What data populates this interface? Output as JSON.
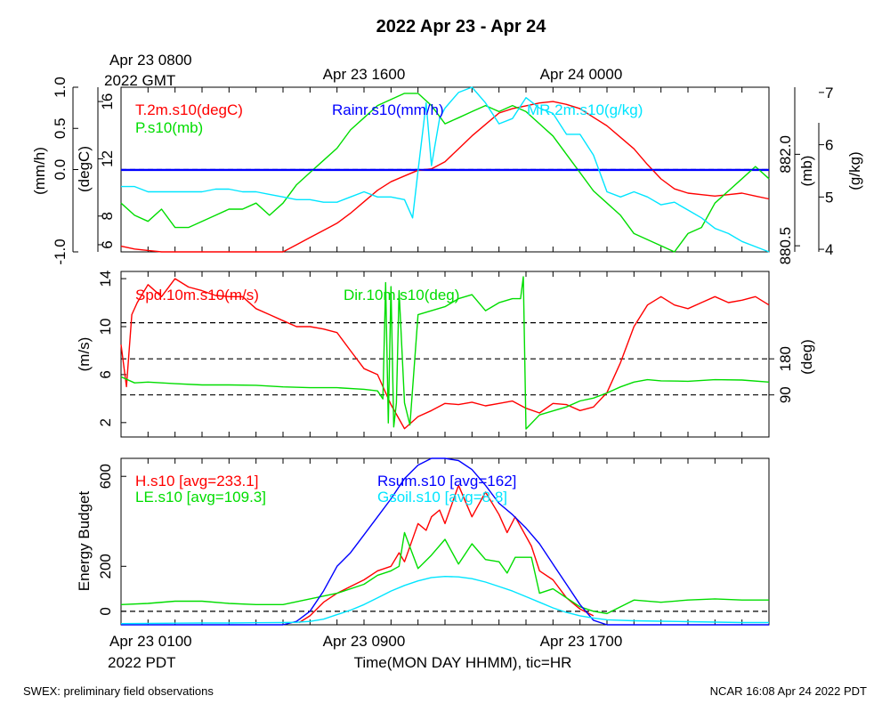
{
  "title": "2022 Apr 23 - Apr 24",
  "top_time_labels": [
    {
      "line1": "Apr 23 0800",
      "line2": "2022 GMT"
    },
    {
      "line1": "Apr 23 1600",
      "line2": ""
    },
    {
      "line1": "Apr 24 0000",
      "line2": ""
    }
  ],
  "bottom_time_labels": [
    {
      "line1": "Apr 23 0100",
      "line2": "2022 PDT"
    },
    {
      "line1": "Apr 23 0900",
      "line2": ""
    },
    {
      "line1": "Apr 23 1700",
      "line2": ""
    }
  ],
  "xlabel": "Time(MON DAY HHMM), tic=HR",
  "footer_left": "SWEX: preliminary field observations",
  "footer_right": "NCAR 16:08 Apr 24 2022 PDT",
  "colors": {
    "red": "#ff0000",
    "green": "#00dd00",
    "blue": "#0000ff",
    "cyan": "#00e5ff",
    "black": "#000000"
  },
  "chart_data": [
    {
      "type": "line",
      "name": "panel-1",
      "x_range_hours_pdt": [
        0,
        24
      ],
      "axes": {
        "rain": {
          "label": "(mm/h)",
          "range": [
            -1.0,
            1.0
          ],
          "ticks": [
            "-1.0",
            "0.0",
            "0.5",
            "1.0"
          ],
          "tick_values": [
            -1.0,
            0.0,
            0.5,
            1.0
          ]
        },
        "temp": {
          "label": "(degC)",
          "range": [
            5.5,
            17.0
          ],
          "ticks": [
            "6",
            "8",
            "12",
            "16"
          ],
          "tick_values": [
            6,
            8,
            12,
            16
          ]
        },
        "pres": {
          "label": "(mb)",
          "range": [
            880.4,
            883.1
          ],
          "ticks": [
            "880.5",
            "882.0"
          ],
          "tick_values": [
            880.5,
            882.0
          ]
        },
        "mr": {
          "label": "(g/kg)",
          "range": [
            3.95,
            7.1
          ],
          "ticks": [
            "4",
            "5",
            "6",
            "7"
          ],
          "tick_values": [
            4,
            5,
            6,
            7
          ]
        }
      },
      "reference_lines": [
        {
          "axis": "rain",
          "value": 0.0,
          "style": "dashed"
        },
        {
          "axis": "rain",
          "value": 0.0,
          "style": "solid-blue"
        }
      ],
      "series": [
        {
          "name": "T.2m.s10(degC)",
          "axis": "temp",
          "color": "red",
          "x": [
            0,
            0.5,
            1,
            1.5,
            2,
            2.5,
            3,
            3.5,
            4,
            4.5,
            5,
            5.5,
            6,
            6.5,
            7,
            7.5,
            8,
            8.5,
            9,
            9.5,
            10,
            10.5,
            11,
            11.5,
            12,
            12.5,
            13,
            13.5,
            14,
            14.5,
            15,
            15.5,
            16,
            16.5,
            17,
            17.5,
            18,
            18.5,
            19,
            19.5,
            20,
            20.5,
            21,
            21.5,
            22,
            22.5,
            23,
            23.5,
            24
          ],
          "y": [
            5.9,
            5.7,
            5.6,
            5.5,
            5.5,
            5.5,
            5.5,
            5.4,
            5.4,
            5.4,
            5.5,
            5.4,
            5.5,
            6.0,
            6.5,
            7.0,
            7.5,
            8.2,
            9.0,
            9.8,
            10.4,
            10.8,
            11.2,
            11.3,
            11.8,
            12.7,
            13.6,
            14.4,
            15.2,
            15.5,
            15.7,
            15.9,
            16.0,
            15.8,
            15.5,
            14.9,
            14.3,
            13.5,
            12.7,
            11.6,
            10.6,
            9.9,
            9.6,
            9.5,
            9.4,
            9.5,
            9.6,
            9.4,
            9.2
          ]
        },
        {
          "name": "P.s10(mb)",
          "axis": "pres",
          "color": "green",
          "x": [
            0,
            0.5,
            1,
            1.5,
            2,
            2.5,
            3,
            3.5,
            4,
            4.5,
            5,
            5.5,
            6,
            6.5,
            7,
            7.5,
            8,
            8.5,
            9,
            9.5,
            10,
            10.5,
            11,
            11.5,
            12,
            12.5,
            13,
            13.5,
            14,
            14.5,
            15,
            15.5,
            16,
            16.5,
            17,
            17.5,
            18,
            18.5,
            19,
            19.5,
            20,
            20.5,
            21,
            21.5,
            22,
            22.5,
            23,
            23.5,
            24
          ],
          "y": [
            881.2,
            881.0,
            880.9,
            881.1,
            880.8,
            880.8,
            880.9,
            881.0,
            881.1,
            881.1,
            881.2,
            881.0,
            881.2,
            881.5,
            881.7,
            881.9,
            882.1,
            882.4,
            882.6,
            882.8,
            882.9,
            883.0,
            883.0,
            882.8,
            882.5,
            882.6,
            882.7,
            882.8,
            882.7,
            882.8,
            882.7,
            882.5,
            882.3,
            882.0,
            881.7,
            881.4,
            881.2,
            881.0,
            880.7,
            880.6,
            880.5,
            880.4,
            880.7,
            880.8,
            881.2,
            881.4,
            881.6,
            881.8,
            881.6
          ]
        },
        {
          "name": "Rainr.s10(mm/h)",
          "axis": "rain",
          "color": "blue",
          "x": [
            0,
            24
          ],
          "y": [
            0.0,
            0.0
          ]
        },
        {
          "name": "MR.2m.s10(g/kg)",
          "axis": "mr",
          "color": "cyan",
          "x": [
            0,
            0.5,
            1,
            1.5,
            2,
            2.5,
            3,
            3.5,
            4,
            4.5,
            5,
            5.5,
            6,
            6.5,
            7,
            7.5,
            8,
            8.5,
            9,
            9.5,
            10,
            10.5,
            10.8,
            11,
            11.3,
            11.5,
            11.8,
            12,
            12.5,
            13,
            13.5,
            14,
            14.5,
            15,
            15.5,
            16,
            16.5,
            17,
            17.5,
            18,
            18.5,
            19,
            19.5,
            20,
            20.5,
            21,
            21.5,
            22,
            22.5,
            23,
            23.5,
            24
          ],
          "y": [
            5.2,
            5.2,
            5.1,
            5.1,
            5.1,
            5.1,
            5.1,
            5.15,
            5.15,
            5.1,
            5.1,
            5.05,
            5.0,
            4.95,
            4.95,
            4.9,
            4.9,
            5.0,
            5.1,
            5.0,
            5.0,
            4.95,
            4.6,
            5.5,
            6.8,
            5.6,
            6.5,
            6.7,
            7.0,
            7.1,
            6.8,
            6.4,
            6.5,
            6.9,
            6.7,
            6.6,
            6.2,
            6.2,
            5.8,
            5.1,
            5.0,
            5.1,
            5.0,
            4.85,
            4.9,
            4.75,
            4.6,
            4.4,
            4.3,
            4.15,
            4.05,
            3.95
          ]
        }
      ]
    },
    {
      "type": "line",
      "name": "panel-2",
      "x_range_hours_pdt": [
        0,
        24
      ],
      "axes": {
        "spd": {
          "label": "(m/s)",
          "range": [
            0.8,
            14.6
          ],
          "ticks": [
            "2",
            "6",
            "10",
            "14"
          ],
          "tick_values": [
            2,
            6,
            10,
            14
          ]
        },
        "dir": {
          "label": "(deg)",
          "range": [
            -15,
            398
          ],
          "ticks": [
            "90",
            "180"
          ],
          "tick_values": [
            90,
            180
          ]
        }
      },
      "reference_lines": [
        {
          "axis": "dir",
          "value": 90
        },
        {
          "axis": "dir",
          "value": 180
        },
        {
          "axis": "dir",
          "value": 270
        }
      ],
      "series": [
        {
          "name": "Spd.10m.s10(m/s)",
          "axis": "spd",
          "color": "red",
          "x": [
            0,
            0.2,
            0.4,
            0.6,
            1,
            1.5,
            2,
            2.5,
            3,
            3.5,
            4,
            4.5,
            5,
            5.5,
            6,
            6.5,
            7,
            7.5,
            8,
            8.5,
            9,
            9.5,
            10,
            10.5,
            11,
            11.5,
            12,
            12.5,
            13,
            13.5,
            14,
            14.5,
            15,
            15.5,
            16,
            16.5,
            17,
            17.5,
            18,
            18.5,
            19,
            19.5,
            20,
            20.5,
            21,
            21.5,
            22,
            22.5,
            23,
            23.5,
            24
          ],
          "y": [
            8.5,
            5.0,
            11.0,
            12.0,
            13.5,
            12.5,
            14.0,
            13.3,
            13.0,
            12.6,
            12.5,
            12.5,
            11.5,
            11.0,
            10.5,
            10.0,
            10.0,
            9.8,
            9.5,
            8.0,
            6.5,
            6.0,
            3.5,
            1.5,
            2.5,
            3.0,
            3.6,
            3.5,
            3.7,
            3.4,
            3.6,
            3.8,
            3.2,
            2.8,
            3.6,
            3.5,
            3.0,
            3.3,
            4.5,
            7.0,
            10.0,
            11.8,
            12.5,
            11.8,
            11.5,
            12.0,
            12.5,
            12.0,
            12.2,
            12.5,
            11.8
          ]
        },
        {
          "name": "Dir.10m.s10(deg)",
          "axis": "dir",
          "color": "green",
          "x": [
            0,
            0.5,
            1,
            2,
            3,
            4,
            5,
            6,
            7,
            8,
            9,
            9.5,
            9.7,
            9.8,
            9.9,
            10,
            10.1,
            10.2,
            10.3,
            10.5,
            10.7,
            11,
            11.5,
            12,
            12.5,
            13,
            13.5,
            14,
            14.5,
            14.8,
            14.9,
            15.0,
            15.5,
            16,
            16.5,
            17,
            17.5,
            18,
            18.5,
            19,
            19.5,
            20,
            21,
            22,
            23,
            24
          ],
          "y": [
            135,
            120,
            122,
            118,
            115,
            115,
            114,
            110,
            108,
            108,
            104,
            100,
            80,
            370,
            20,
            360,
            10,
            70,
            350,
            70,
            15,
            290,
            300,
            310,
            330,
            340,
            300,
            320,
            330,
            330,
            385,
            5,
            40,
            50,
            60,
            75,
            82,
            95,
            110,
            122,
            128,
            125,
            124,
            128,
            127,
            122
          ]
        }
      ]
    },
    {
      "type": "line",
      "name": "panel-3",
      "x_range_hours_pdt": [
        0,
        24
      ],
      "axes": {
        "energy": {
          "label": "Energy Budget",
          "range": [
            -60,
            680
          ],
          "ticks": [
            "0",
            "200",
            "600"
          ],
          "tick_values": [
            0,
            200,
            600
          ]
        }
      },
      "reference_lines": [
        {
          "axis": "energy",
          "value": 0,
          "style": "dashed"
        }
      ],
      "series": [
        {
          "name": "H.s10 [avg=233.1]",
          "axis": "energy",
          "color": "red",
          "x": [
            6.6,
            7,
            7.5,
            8,
            8.5,
            9,
            9.5,
            10,
            10.3,
            10.5,
            11,
            11.3,
            11.5,
            11.8,
            12,
            12.5,
            13,
            13.5,
            14,
            14.3,
            14.6,
            15.2,
            15.5,
            16,
            16.5,
            17,
            17.5
          ],
          "y": [
            -50,
            -20,
            40,
            80,
            110,
            140,
            180,
            200,
            260,
            220,
            390,
            360,
            420,
            450,
            390,
            560,
            420,
            530,
            430,
            350,
            420,
            290,
            180,
            140,
            60,
            10,
            -20
          ]
        },
        {
          "name": "LE.s10 [avg=109.3]",
          "axis": "energy",
          "color": "green",
          "x": [
            0,
            1,
            2,
            3,
            4,
            5,
            6,
            7,
            8,
            9,
            9.5,
            10,
            10.3,
            10.5,
            11,
            11.5,
            12,
            12.5,
            13,
            13.5,
            14,
            14.3,
            14.6,
            15.2,
            15.5,
            16,
            16.5,
            17,
            17.5,
            18,
            19,
            20,
            21,
            22,
            23,
            24
          ],
          "y": [
            30,
            35,
            45,
            45,
            35,
            30,
            30,
            55,
            80,
            120,
            160,
            180,
            200,
            350,
            190,
            250,
            320,
            210,
            300,
            230,
            220,
            170,
            240,
            240,
            80,
            100,
            60,
            20,
            0,
            -10,
            50,
            40,
            50,
            55,
            50,
            50
          ]
        },
        {
          "name": "Rsum.s10 [avg=162]",
          "axis": "energy",
          "color": "blue",
          "x": [
            0,
            1,
            2,
            3,
            4,
            5,
            6,
            6.5,
            7,
            7.5,
            8,
            8.5,
            9,
            9.5,
            10,
            10.5,
            11,
            11.5,
            12,
            12.5,
            13,
            13.5,
            14,
            14.5,
            15,
            15.5,
            16,
            16.5,
            17,
            17.5,
            18,
            19,
            20,
            21,
            22,
            23,
            24
          ],
          "y": [
            -70,
            -68,
            -67,
            -66,
            -65,
            -64,
            -62,
            -45,
            0,
            90,
            200,
            260,
            340,
            420,
            500,
            590,
            650,
            690,
            700,
            670,
            630,
            560,
            480,
            430,
            370,
            300,
            210,
            120,
            30,
            -40,
            -60,
            -70,
            -72,
            -73,
            -74,
            -75,
            -75
          ]
        },
        {
          "name": "Gsoil.s10 [avg=8.8]",
          "axis": "energy",
          "color": "cyan",
          "x": [
            0,
            1,
            2,
            3,
            4,
            5,
            6,
            6.5,
            7,
            7.5,
            8,
            8.5,
            9,
            9.5,
            10,
            10.5,
            11,
            11.5,
            12,
            12.5,
            13,
            13.5,
            14,
            14.5,
            15,
            15.5,
            16,
            16.5,
            17,
            17.5,
            18,
            19,
            20,
            21,
            22,
            23,
            24
          ],
          "y": [
            -55,
            -54,
            -53,
            -52,
            -52,
            -51,
            -50,
            -49,
            -45,
            -35,
            -15,
            5,
            30,
            60,
            90,
            115,
            135,
            150,
            155,
            153,
            145,
            130,
            110,
            90,
            65,
            40,
            15,
            -5,
            -20,
            -30,
            -38,
            -42,
            -44,
            -46,
            -48,
            -50,
            -50
          ]
        }
      ]
    }
  ]
}
